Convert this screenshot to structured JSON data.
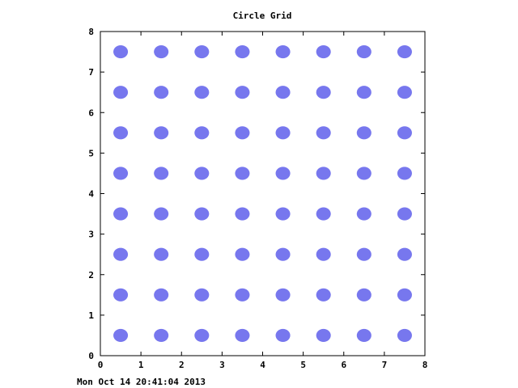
{
  "title": "Circle Grid",
  "timestamp": "Mon Oct 14 20:41:04 2013",
  "chart_data": {
    "type": "scatter",
    "title": "Circle Grid",
    "xlabel": "",
    "ylabel": "",
    "xlim": [
      0,
      8
    ],
    "ylim": [
      0,
      8
    ],
    "xticks": [
      "0",
      "1",
      "2",
      "3",
      "4",
      "5",
      "6",
      "7",
      "8"
    ],
    "yticks": [
      "0",
      "1",
      "2",
      "3",
      "4",
      "5",
      "6",
      "7",
      "8"
    ],
    "grid": false,
    "marker": "filled-circle",
    "point_color": "#7777ee",
    "points": [
      [
        0.5,
        0.5
      ],
      [
        1.5,
        0.5
      ],
      [
        2.5,
        0.5
      ],
      [
        3.5,
        0.5
      ],
      [
        4.5,
        0.5
      ],
      [
        5.5,
        0.5
      ],
      [
        6.5,
        0.5
      ],
      [
        7.5,
        0.5
      ],
      [
        0.5,
        1.5
      ],
      [
        1.5,
        1.5
      ],
      [
        2.5,
        1.5
      ],
      [
        3.5,
        1.5
      ],
      [
        4.5,
        1.5
      ],
      [
        5.5,
        1.5
      ],
      [
        6.5,
        1.5
      ],
      [
        7.5,
        1.5
      ],
      [
        0.5,
        2.5
      ],
      [
        1.5,
        2.5
      ],
      [
        2.5,
        2.5
      ],
      [
        3.5,
        2.5
      ],
      [
        4.5,
        2.5
      ],
      [
        5.5,
        2.5
      ],
      [
        6.5,
        2.5
      ],
      [
        7.5,
        2.5
      ],
      [
        0.5,
        3.5
      ],
      [
        1.5,
        3.5
      ],
      [
        2.5,
        3.5
      ],
      [
        3.5,
        3.5
      ],
      [
        4.5,
        3.5
      ],
      [
        5.5,
        3.5
      ],
      [
        6.5,
        3.5
      ],
      [
        7.5,
        3.5
      ],
      [
        0.5,
        4.5
      ],
      [
        1.5,
        4.5
      ],
      [
        2.5,
        4.5
      ],
      [
        3.5,
        4.5
      ],
      [
        4.5,
        4.5
      ],
      [
        5.5,
        4.5
      ],
      [
        6.5,
        4.5
      ],
      [
        7.5,
        4.5
      ],
      [
        0.5,
        5.5
      ],
      [
        1.5,
        5.5
      ],
      [
        2.5,
        5.5
      ],
      [
        3.5,
        5.5
      ],
      [
        4.5,
        5.5
      ],
      [
        5.5,
        5.5
      ],
      [
        6.5,
        5.5
      ],
      [
        7.5,
        5.5
      ],
      [
        0.5,
        6.5
      ],
      [
        1.5,
        6.5
      ],
      [
        2.5,
        6.5
      ],
      [
        3.5,
        6.5
      ],
      [
        4.5,
        6.5
      ],
      [
        5.5,
        6.5
      ],
      [
        6.5,
        6.5
      ],
      [
        7.5,
        6.5
      ],
      [
        0.5,
        7.5
      ],
      [
        1.5,
        7.5
      ],
      [
        2.5,
        7.5
      ],
      [
        3.5,
        7.5
      ],
      [
        4.5,
        7.5
      ],
      [
        5.5,
        7.5
      ],
      [
        6.5,
        7.5
      ],
      [
        7.5,
        7.5
      ]
    ]
  }
}
